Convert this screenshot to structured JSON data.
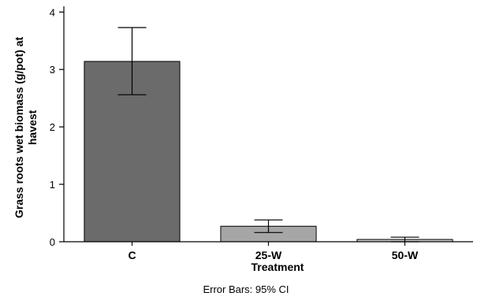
{
  "chart_data": {
    "type": "bar",
    "categories": [
      "C",
      "25-W",
      "50-W"
    ],
    "values": [
      3.14,
      0.27,
      0.04
    ],
    "error_bars": [
      {
        "low": 2.56,
        "high": 3.73
      },
      {
        "low": 0.16,
        "high": 0.38
      },
      {
        "low": 0.0,
        "high": 0.08
      }
    ],
    "bar_colors": [
      "#6b6b6b",
      "#a6a6a6",
      "#c8c8c8"
    ],
    "xlabel": "Treatment",
    "ylabel_lines": [
      "Grass roots wet biomass (g/pot) at",
      "havest"
    ],
    "ylim": [
      0,
      4.1
    ],
    "yticks": [
      "0",
      "1",
      "2",
      "3",
      "4"
    ],
    "footnote": "Error Bars: 95% CI",
    "grid": false
  }
}
